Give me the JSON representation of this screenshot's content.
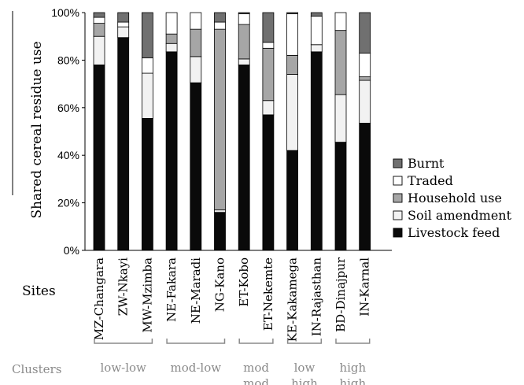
{
  "chart_data": {
    "type": "bar",
    "stacked": true,
    "ylabel": "Shared cereal residue use",
    "yticks": [
      "0%",
      "20%",
      "40%",
      "60%",
      "80%",
      "100%"
    ],
    "ylim": [
      0,
      100
    ],
    "categories": [
      "MZ-Changara",
      "ZW-Nkayi",
      "MW-Mzimba",
      "NE-Fakara",
      "NE-Maradi",
      "NG-Kano",
      "ET-Kobo",
      "ET-Nekemte",
      "KE-Kakamega",
      "IN-Rajasthan",
      "BD-Dinajpur",
      "IN-Karnal"
    ],
    "series": [
      {
        "name": "Livestock feed",
        "color": "#0a0a0a",
        "values": [
          78,
          89.5,
          55.5,
          83.5,
          70.5,
          16,
          78,
          57,
          42,
          83.5,
          45.5,
          53.5
        ]
      },
      {
        "name": "Soil amendment",
        "color": "#f2f2f2",
        "values": [
          12,
          4.5,
          19,
          3.5,
          11,
          1,
          2.5,
          6,
          32,
          3,
          20,
          18
        ]
      },
      {
        "name": "Household use",
        "color": "#a6a6a6",
        "values": [
          5.5,
          0,
          0,
          4,
          11.5,
          76,
          14.5,
          22,
          8,
          0,
          27,
          1.5
        ]
      },
      {
        "name": "Traded",
        "color": "#ffffff",
        "values": [
          2.5,
          2,
          6.5,
          9,
          7,
          3,
          4.5,
          2.5,
          17.5,
          12,
          7.5,
          10
        ]
      },
      {
        "name": "Burnt",
        "color": "#707070",
        "values": [
          2,
          4,
          19,
          0,
          0,
          4,
          0.5,
          12.5,
          0.5,
          1.5,
          0,
          17
        ]
      }
    ],
    "legend_placement": "right",
    "grid": false
  },
  "sites_label": "Sites",
  "clusters_label": "Clusters",
  "clusters": [
    {
      "lines": [
        "low-low"
      ],
      "from": 0,
      "to": 2
    },
    {
      "lines": [
        "mod-low"
      ],
      "from": 3,
      "to": 5
    },
    {
      "lines": [
        "mod",
        "mod"
      ],
      "from": 6,
      "to": 7
    },
    {
      "lines": [
        "low",
        "high"
      ],
      "from": 8,
      "to": 9
    },
    {
      "lines": [
        "high",
        "high"
      ],
      "from": 10,
      "to": 11
    }
  ]
}
